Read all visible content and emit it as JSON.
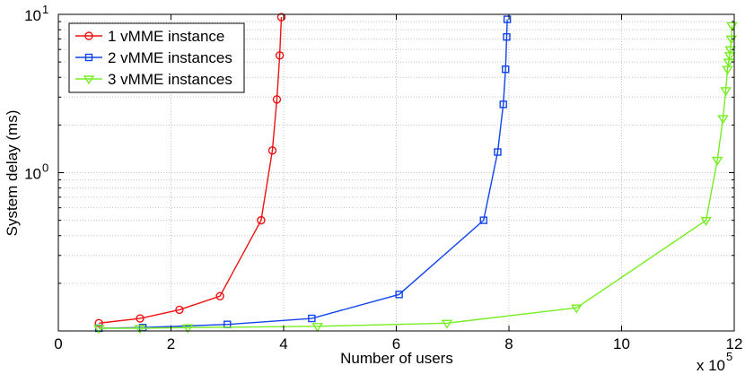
{
  "chart_data": {
    "type": "line",
    "xlabel": "Number of users",
    "ylabel": "System delay (ms)",
    "x_multiplier_label": "x 10",
    "x_multiplier_exponent": "5",
    "xlim": [
      0,
      12
    ],
    "ylim": [
      0.1,
      10
    ],
    "y_scale": "log",
    "grid": true,
    "legend_position": "top-left",
    "x_ticks": [
      {
        "value": 0,
        "label": "0"
      },
      {
        "value": 2,
        "label": "2"
      },
      {
        "value": 4,
        "label": "4"
      },
      {
        "value": 6,
        "label": "6"
      },
      {
        "value": 8,
        "label": "8"
      },
      {
        "value": 10,
        "label": "10"
      },
      {
        "value": 12,
        "label": "12"
      }
    ],
    "y_ticks": [
      {
        "value": 1,
        "base": "10",
        "exp": "0"
      },
      {
        "value": 10,
        "base": "10",
        "exp": "1"
      }
    ],
    "series": [
      {
        "name": "1 vMME instance",
        "color": "#ee1111",
        "marker": "circle",
        "x": [
          0.72,
          1.45,
          2.15,
          2.87,
          3.6,
          3.8,
          3.88,
          3.93,
          3.96
        ],
        "y": [
          0.112,
          0.12,
          0.136,
          0.166,
          0.5,
          1.38,
          2.9,
          5.5,
          9.6
        ]
      },
      {
        "name": "2 vMME instances",
        "color": "#1144ee",
        "marker": "square",
        "x": [
          0.72,
          1.5,
          3.0,
          4.5,
          6.05,
          7.55,
          7.8,
          7.9,
          7.94,
          7.96,
          7.97
        ],
        "y": [
          0.104,
          0.105,
          0.11,
          0.12,
          0.17,
          0.5,
          1.35,
          2.7,
          4.5,
          7.2,
          9.3
        ]
      },
      {
        "name": "3 vMME instances",
        "color": "#77ee22",
        "marker": "triangle-down",
        "x": [
          0.72,
          1.45,
          2.3,
          4.6,
          6.9,
          9.2,
          11.5,
          11.7,
          11.8,
          11.85,
          11.88,
          11.9,
          11.92,
          11.93,
          11.95,
          11.96
        ],
        "y": [
          0.104,
          0.104,
          0.105,
          0.107,
          0.112,
          0.14,
          0.5,
          1.2,
          2.2,
          3.3,
          4.5,
          5.0,
          5.5,
          6.0,
          7.0,
          8.5
        ]
      }
    ]
  }
}
